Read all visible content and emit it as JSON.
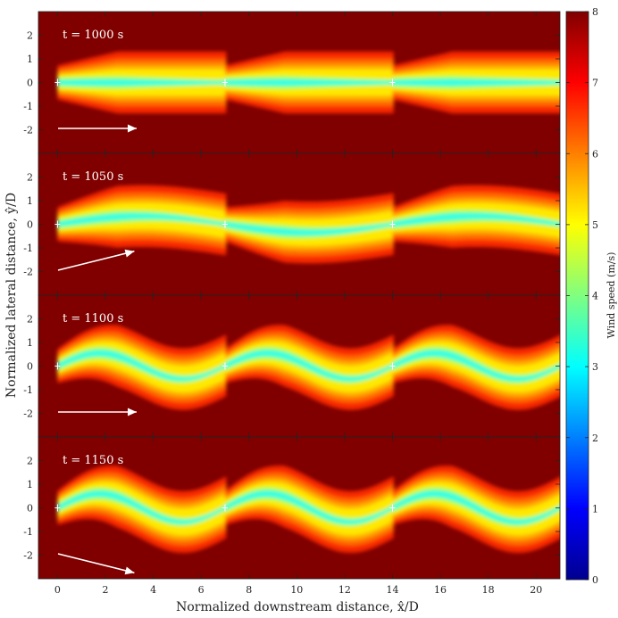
{
  "chart_data": {
    "type": "heatmap",
    "xlabel": "Normalized downstream distance, x̂/D",
    "ylabel": "Normalized lateral distance, ŷ/D",
    "xlim": [
      -0.8,
      21
    ],
    "ylim": [
      -3,
      3
    ],
    "x_ticks": [
      0,
      2,
      4,
      6,
      8,
      10,
      12,
      14,
      16,
      18,
      20
    ],
    "y_ticks": [
      -2,
      -1,
      0,
      1,
      2
    ],
    "turbine_x": [
      0,
      7,
      14
    ],
    "colorbar": {
      "label": "Wind speed (m/s)",
      "range": [
        0,
        8
      ],
      "ticks": [
        0,
        1,
        2,
        3,
        4,
        5,
        6,
        7,
        8
      ],
      "colormap": "jet"
    },
    "panels": [
      {
        "label": "t = 1000 s",
        "wind_direction_deg": 0,
        "meander_amplitude": 0.0,
        "meander_wavelength": 14
      },
      {
        "label": "t = 1050 s",
        "wind_direction_deg": 14,
        "meander_amplitude": 0.35,
        "meander_wavelength": 14
      },
      {
        "label": "t = 1100 s",
        "wind_direction_deg": 0,
        "meander_amplitude": 0.55,
        "meander_wavelength": 7
      },
      {
        "label": "t = 1150 s",
        "wind_direction_deg": -14,
        "meander_amplitude": 0.6,
        "meander_wavelength": 7
      }
    ]
  },
  "colors": {
    "background": "#800000",
    "arrow": "#ffffff"
  }
}
